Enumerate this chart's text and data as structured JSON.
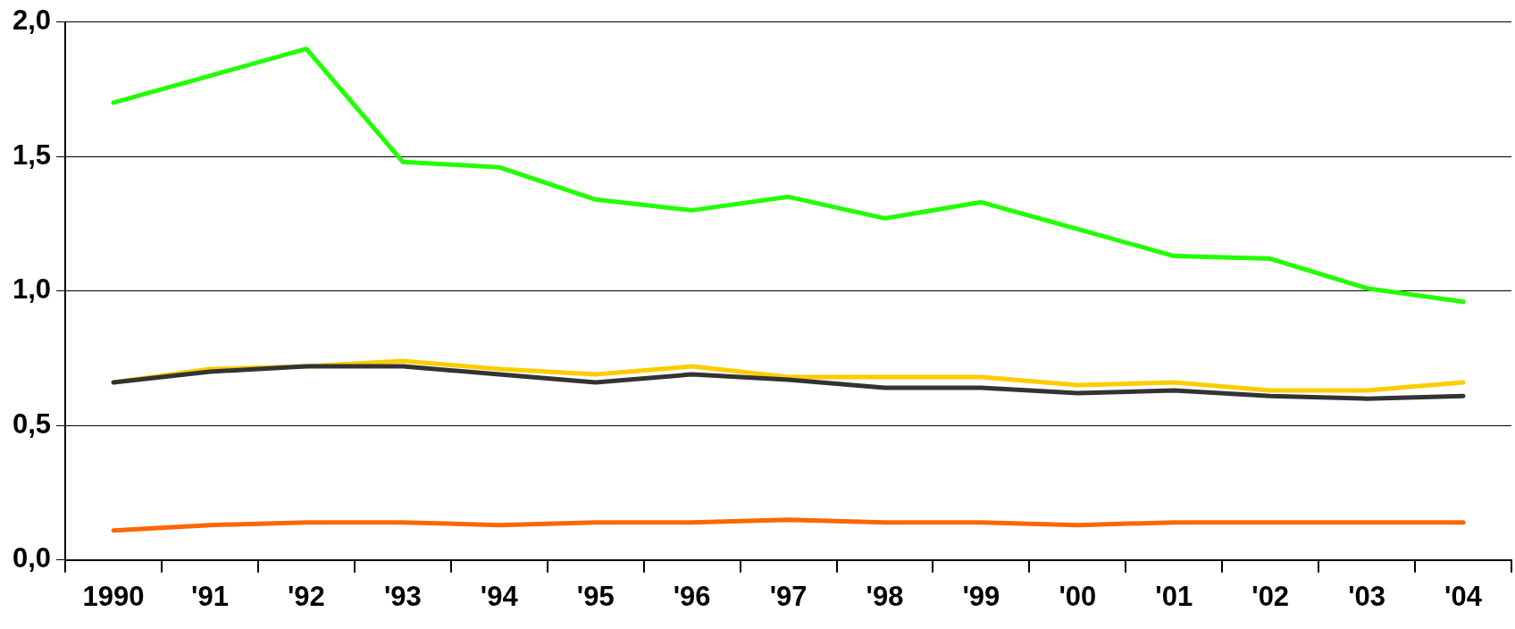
{
  "chart_data": {
    "type": "line",
    "categories": [
      "1990",
      "'91",
      "'92",
      "'93",
      "'94",
      "'95",
      "'96",
      "'97",
      "'98",
      "'99",
      "'00",
      "'01",
      "'02",
      "'03",
      "'04"
    ],
    "series": [
      {
        "color": "#22ff00",
        "values": [
          1.7,
          1.8,
          1.9,
          1.48,
          1.46,
          1.34,
          1.3,
          1.35,
          1.27,
          1.33,
          1.23,
          1.13,
          1.12,
          1.01,
          0.96
        ]
      },
      {
        "color": "#ffcc00",
        "values": [
          0.66,
          0.71,
          0.72,
          0.74,
          0.71,
          0.69,
          0.72,
          0.68,
          0.68,
          0.68,
          0.65,
          0.66,
          0.63,
          0.63,
          0.66
        ]
      },
      {
        "color": "#333333",
        "values": [
          0.66,
          0.7,
          0.72,
          0.72,
          0.69,
          0.66,
          0.69,
          0.67,
          0.64,
          0.64,
          0.62,
          0.63,
          0.61,
          0.6,
          0.61
        ]
      },
      {
        "color": "#ff6600",
        "values": [
          0.11,
          0.13,
          0.14,
          0.14,
          0.13,
          0.14,
          0.14,
          0.15,
          0.14,
          0.14,
          0.13,
          0.14,
          0.14,
          0.14,
          0.14
        ]
      }
    ],
    "ylim": [
      0,
      2
    ],
    "yticks": [
      {
        "value": 0,
        "label": "0,0"
      },
      {
        "value": 0.5,
        "label": "0,5"
      },
      {
        "value": 1,
        "label": "1,0"
      },
      {
        "value": 1.5,
        "label": "1,5"
      },
      {
        "value": 2,
        "label": "2,0"
      }
    ],
    "grid": "y",
    "legend": false,
    "marker": "none",
    "line_style": "solid"
  }
}
